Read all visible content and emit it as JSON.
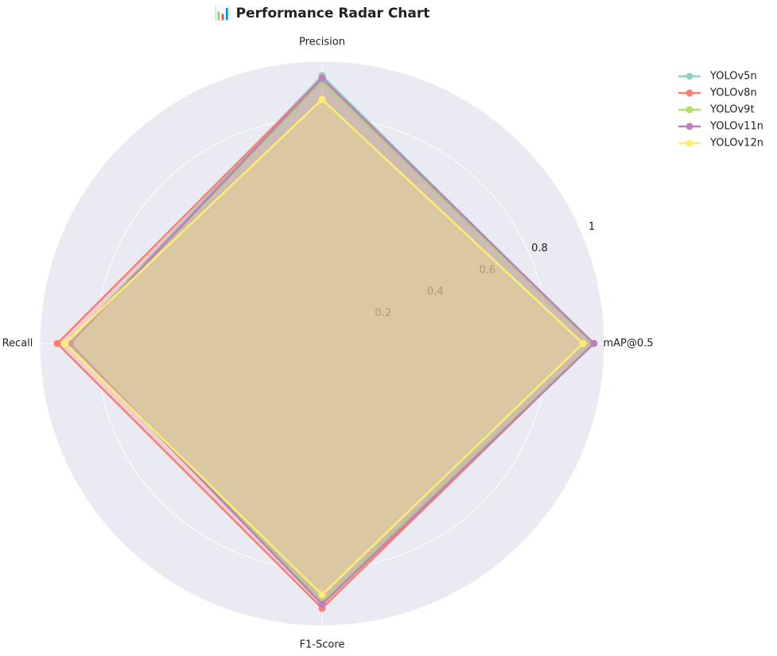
{
  "chart_data": {
    "type": "radar",
    "title": "📊 Performance Radar Chart",
    "categories": [
      "mAP@0.5",
      "Precision",
      "Recall",
      "F1-Score"
    ],
    "ylim": [
      0,
      1
    ],
    "yticks": [
      0.2,
      0.4,
      0.6,
      0.8,
      1.0
    ],
    "grid": true,
    "legend": "upper right",
    "series": [
      {
        "name": "YOLOv5n",
        "color": "#8dd3c7",
        "values": [
          0.958,
          0.949,
          0.9,
          0.915
        ]
      },
      {
        "name": "YOLOv8n",
        "color": "#fb8072",
        "values": [
          0.96,
          0.941,
          0.938,
          0.938
        ]
      },
      {
        "name": "YOLOv9t",
        "color": "#b3de69",
        "values": [
          0.958,
          0.93,
          0.898,
          0.915
        ]
      },
      {
        "name": "YOLOv11n",
        "color": "#bc80bd",
        "values": [
          0.963,
          0.94,
          0.893,
          0.924
        ]
      },
      {
        "name": "YOLOv12n",
        "color": "#ffed6f",
        "values": [
          0.924,
          0.865,
          0.91,
          0.89
        ]
      }
    ]
  }
}
